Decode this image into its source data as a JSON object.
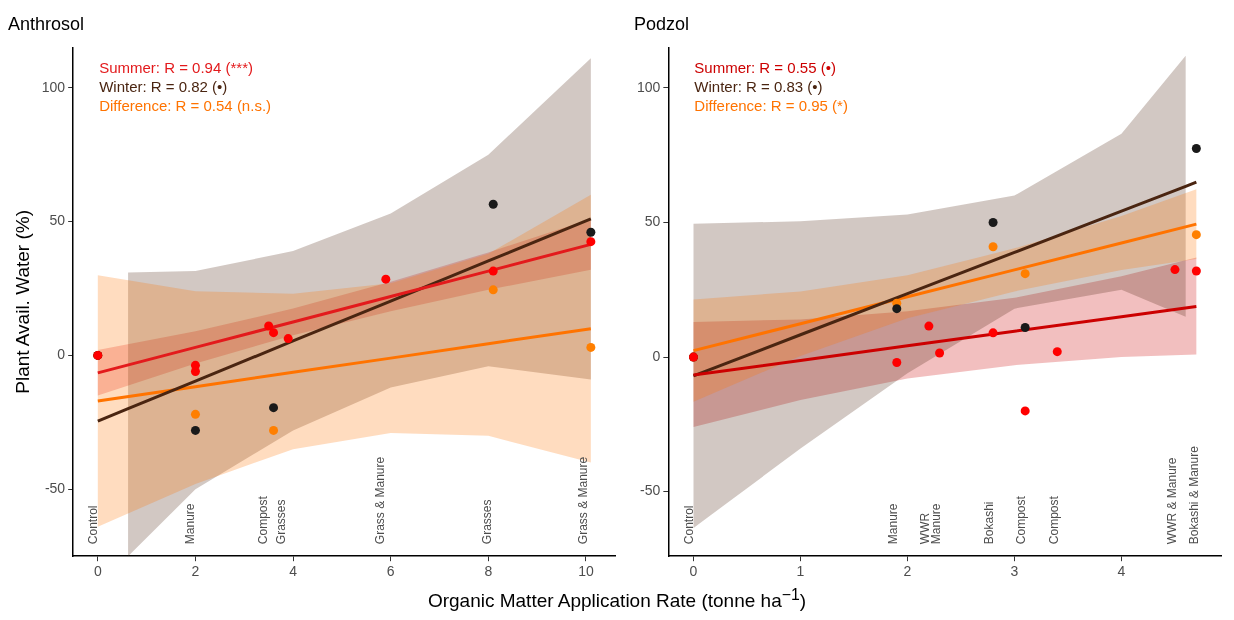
{
  "chart_data": [
    {
      "type": "scatter",
      "title": "Anthrosol",
      "xlabel": "Organic Matter Application Rate (tonne ha$^{−1}$)",
      "ylabel": "Plant Avail. Water (%)",
      "xlim": [
        -0.505,
        10.605
      ],
      "ylim": [
        -75,
        115
      ],
      "xticks": [
        0,
        2,
        4,
        6,
        8,
        10
      ],
      "yticks": [
        -50,
        0,
        50,
        100
      ],
      "grid": false,
      "line_style": "solid",
      "series": [
        {
          "type": "scatter",
          "marker": "circle",
          "color": "#ff0000",
          "x": [
            0,
            2,
            2,
            3.5,
            3.6,
            3.9,
            5.9,
            8.1,
            10.1
          ],
          "values": [
            0,
            -3.7,
            -6,
            11,
            8.5,
            6.3,
            28.5,
            31.5,
            42.5
          ]
        },
        {
          "type": "scatter",
          "marker": "circle",
          "color": "#1a1a1a",
          "x": [
            0,
            2,
            3.6,
            8.1,
            10.1
          ],
          "values": [
            0,
            -28,
            -19.5,
            56.5,
            46
          ]
        },
        {
          "type": "scatter",
          "marker": "circle",
          "color": "#ff7f00",
          "x": [
            0,
            2,
            3.6,
            8.1,
            10.1
          ],
          "values": [
            0,
            -22,
            -28,
            24.5,
            3
          ]
        },
        {
          "type": "line",
          "marker": "none",
          "name": "Summer: R = 0.94 (***)",
          "color": "#e31a1c",
          "x": [
            0,
            2,
            4,
            6,
            8,
            10.1
          ],
          "values": [
            -6.5,
            3,
            12.5,
            22,
            31.5,
            41.5
          ],
          "lower": [
            -15,
            -3,
            7.5,
            16.5,
            24.5,
            32
          ],
          "upper": [
            2,
            9,
            17.5,
            27.5,
            38.5,
            51
          ]
        },
        {
          "type": "line",
          "marker": "none",
          "name": "Winter: R = 0.82 (•)",
          "color": "#4a2511",
          "x": [
            0,
            0.62,
            2,
            4,
            6,
            8,
            10.1
          ],
          "values": [
            -24.5,
            -19.9,
            -9.6,
            5.4,
            20.3,
            35.3,
            51
          ],
          "lower": [
            null,
            -75,
            -50,
            -28,
            -12,
            -4,
            -9
          ],
          "upper": [
            null,
            31,
            31.5,
            39,
            53,
            75,
            111
          ]
        },
        {
          "type": "line",
          "marker": "none",
          "name": "Difference: R = 0.54 (n.s.)",
          "color": "#ff7300",
          "x": [
            0,
            2,
            4,
            6,
            8,
            10.1
          ],
          "values": [
            -17,
            -11.7,
            -6.3,
            -1,
            4.4,
            10
          ],
          "lower": [
            -64,
            -48,
            -35,
            -29,
            -30,
            -40
          ],
          "upper": [
            30,
            24,
            23,
            27,
            38,
            60
          ]
        }
      ],
      "annotations": [
        "Control",
        "Manure",
        "Compost",
        "Grasses",
        "Grass & Manure",
        "Grasses",
        "Grass & Manure"
      ]
    },
    {
      "type": "scatter",
      "title": "Podzol",
      "xlim": [
        -0.235,
        4.935
      ],
      "ylim": [
        -74,
        115
      ],
      "xticks": [
        0,
        1,
        2,
        3,
        4
      ],
      "yticks": [
        -50,
        0,
        50,
        100
      ],
      "grid": false,
      "line_style": "solid",
      "series": [
        {
          "type": "scatter",
          "marker": "circle",
          "color": "#ff0000",
          "x": [
            0,
            1.9,
            2.2,
            2.3,
            2.8,
            3.1,
            3.4,
            4.5,
            4.7
          ],
          "values": [
            0,
            -2,
            11.5,
            1.5,
            9,
            -20,
            2,
            32.5,
            32
          ]
        },
        {
          "type": "scatter",
          "marker": "circle",
          "color": "#1a1a1a",
          "x": [
            0,
            1.9,
            2.8,
            3.1,
            4.7
          ],
          "values": [
            0,
            18,
            50,
            11,
            77.5
          ]
        },
        {
          "type": "scatter",
          "marker": "circle",
          "color": "#ff7f00",
          "x": [
            0,
            1.9,
            2.8,
            3.1,
            4.7
          ],
          "values": [
            0,
            20,
            41,
            31,
            45.5
          ]
        },
        {
          "type": "line",
          "marker": "none",
          "name": "Summer: R = 0.55 (•)",
          "color": "#cc0000",
          "x": [
            0,
            1,
            2,
            3,
            4,
            4.7
          ],
          "values": [
            -6.7,
            -1.3,
            4.2,
            9.6,
            15,
            18.8
          ],
          "lower": [
            -26,
            -16,
            -8,
            -3,
            0,
            1
          ],
          "upper": [
            13,
            14,
            17,
            22,
            30,
            37
          ]
        },
        {
          "type": "line",
          "marker": "none",
          "name": "Winter: R = 0.83 (•)",
          "color": "#4a2511",
          "x": [
            0,
            1,
            2,
            3,
            4,
            4.6,
            4.7
          ],
          "values": [
            -7,
            8.3,
            23.6,
            38.9,
            54.2,
            63.4,
            65
          ],
          "lower": [
            -63.5,
            -34,
            -6,
            18,
            25,
            15,
            null
          ],
          "upper": [
            49.5,
            50.5,
            53,
            60,
            83,
            112,
            null
          ]
        },
        {
          "type": "line",
          "marker": "none",
          "name": "Difference: R = 0.95 (*)",
          "color": "#ff7300",
          "x": [
            0,
            1,
            2,
            3,
            4,
            4.7
          ],
          "values": [
            2.4,
            12.4,
            22.4,
            32.4,
            42.4,
            49.4
          ],
          "lower": [
            -16.6,
            0.4,
            14.4,
            24.4,
            32.4,
            36.4
          ],
          "upper": [
            21.4,
            24.4,
            30.4,
            40.4,
            52.4,
            62.4
          ]
        }
      ],
      "annotations": [
        "Control",
        "Manure",
        "WWR",
        "Manure",
        "Bokashi",
        "Compost",
        "Compost",
        "WWR & Manure",
        "Bokashi & Manure"
      ]
    }
  ]
}
